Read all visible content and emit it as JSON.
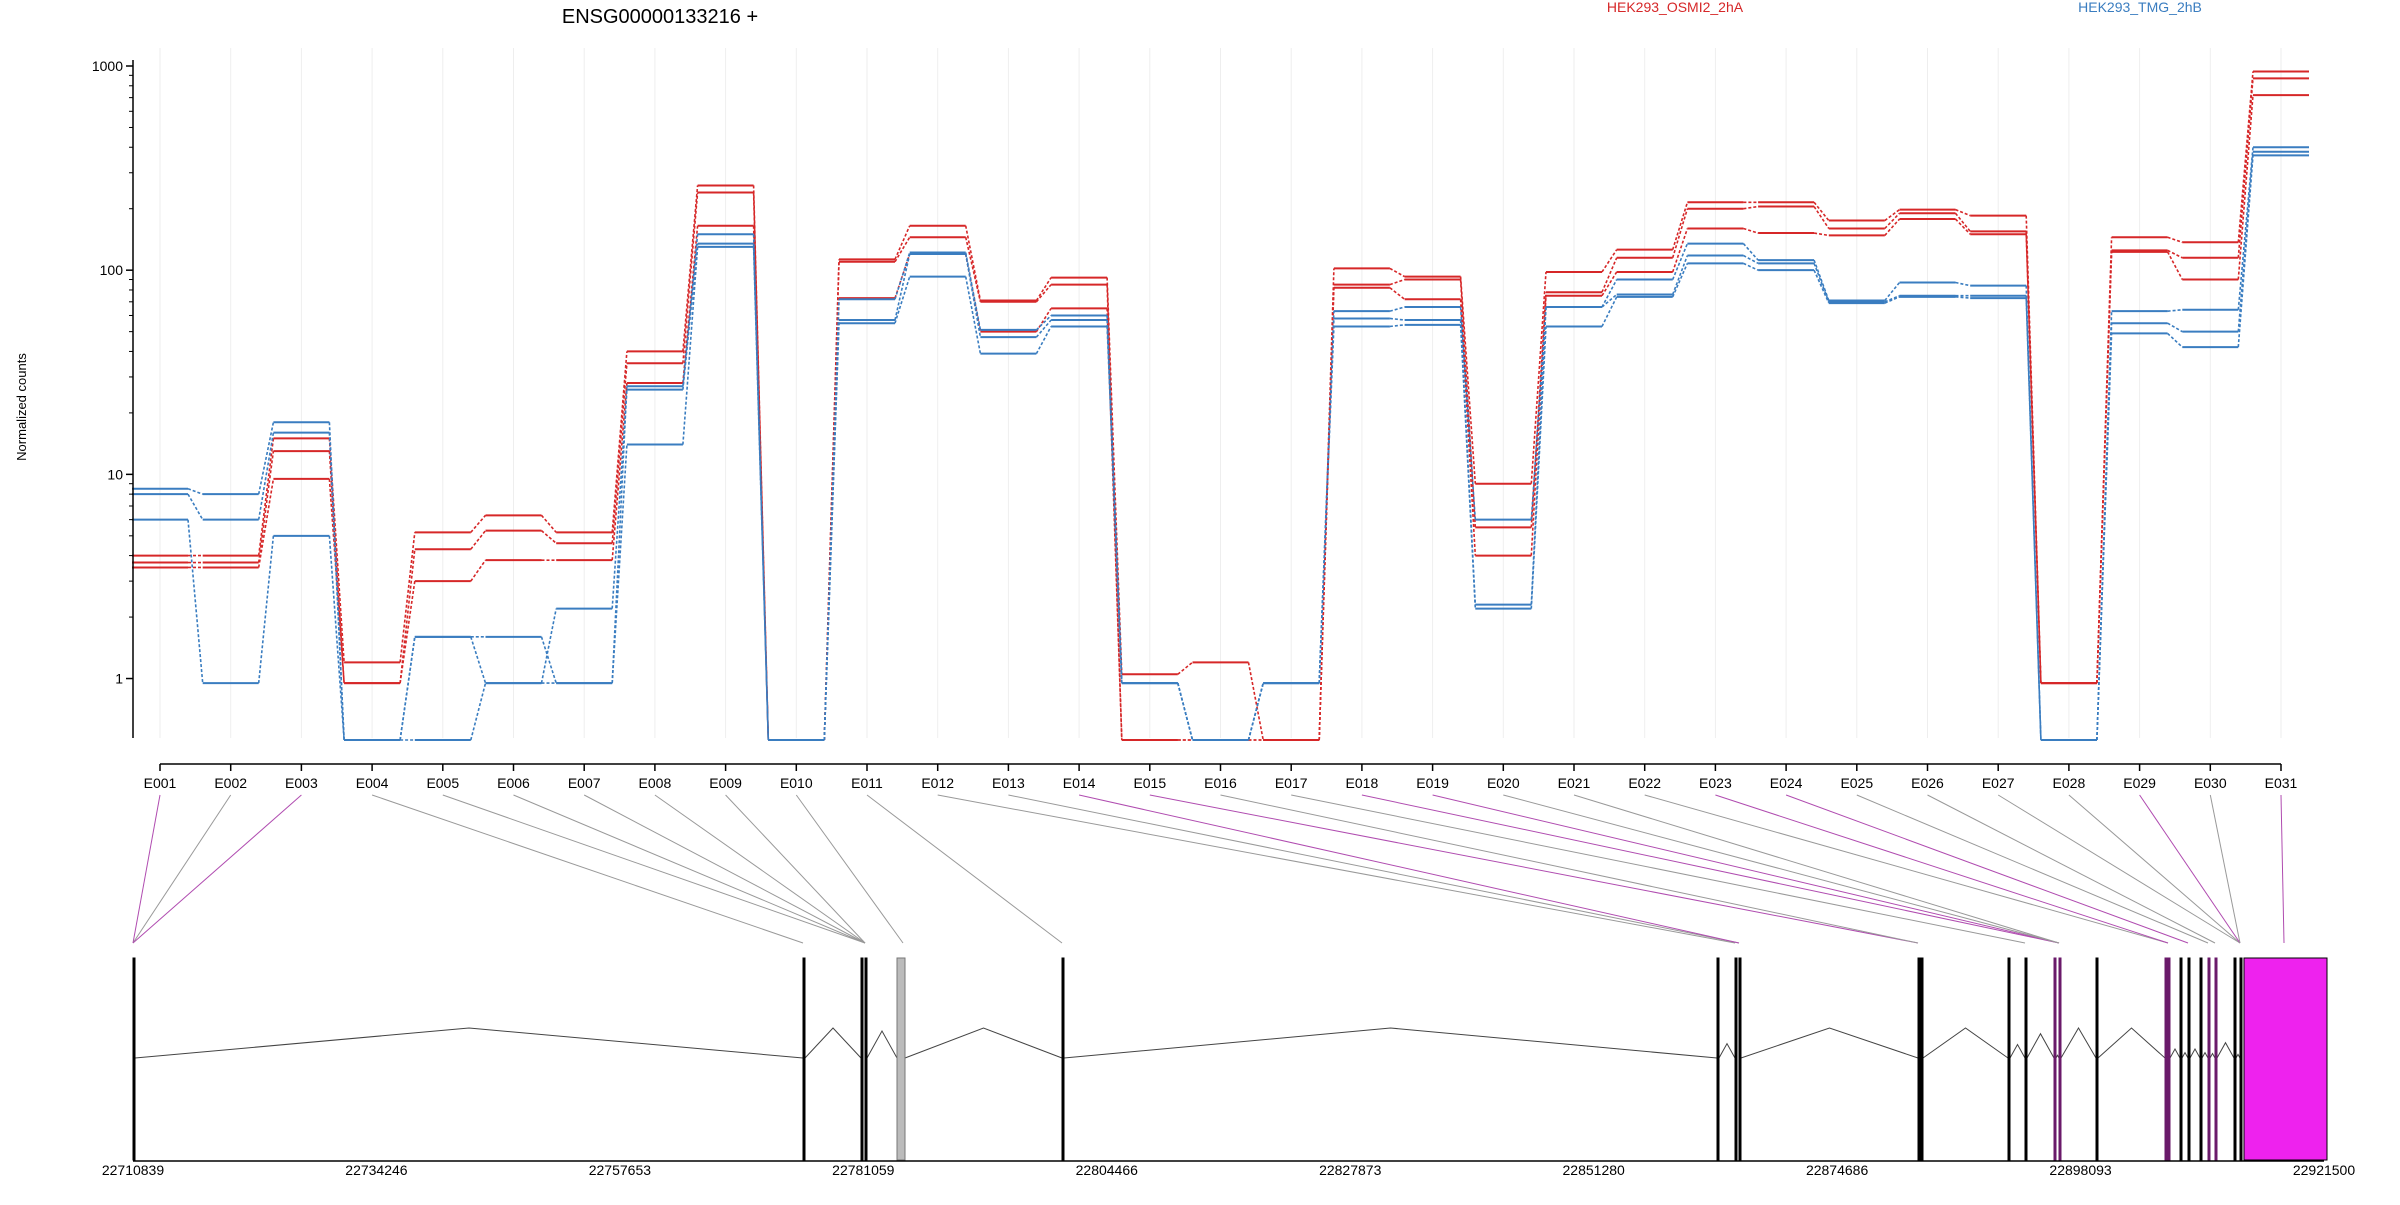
{
  "chart_data": {
    "type": "line",
    "title": "ENSG00000133216 +",
    "ylabel": "Normalized counts",
    "yscale": "log",
    "ylim": [
      0.5,
      1000
    ],
    "yticks": [
      1,
      10,
      100,
      1000
    ],
    "yticklabels": [
      "1",
      "10",
      "100",
      "1000"
    ],
    "grid": true,
    "legend": "top",
    "colors": {
      "red": "#d62728",
      "blue": "#3a7dc0",
      "axis": "#000000",
      "connector_exon": "#999999",
      "connector_highlight": "#b04cb0",
      "exon_highlight": "#ee22ee",
      "exon_gray": "#bbbbbb"
    },
    "categories": [
      "E001",
      "E002",
      "E003",
      "E004",
      "E005",
      "E006",
      "E007",
      "E008",
      "E009",
      "E010",
      "E011",
      "E012",
      "E013",
      "E014",
      "E015",
      "E016",
      "E017",
      "E018",
      "E019",
      "E020",
      "E021",
      "E022",
      "E023",
      "E024",
      "E025",
      "E026",
      "E027",
      "E028",
      "E029",
      "E030",
      "E031"
    ],
    "groups": [
      {
        "name": "HEK293_OSMI2_2hA",
        "color": "#d62728"
      },
      {
        "name": "HEK293_TMG_2hB",
        "color": "#3a7dc0"
      }
    ],
    "series": [
      {
        "group": 0,
        "values": [
          4.0,
          4.0,
          15,
          1.2,
          5.2,
          6.3,
          5.2,
          40,
          260,
          0.5,
          113,
          165,
          71,
          92,
          1.05,
          1.2,
          0.5,
          102,
          93,
          9,
          98,
          126,
          215,
          215,
          175,
          198,
          185,
          0.95,
          145,
          137,
          940
        ]
      },
      {
        "group": 0,
        "values": [
          3.7,
          3.7,
          13,
          0.95,
          4.3,
          5.3,
          4.6,
          35,
          240,
          0.5,
          110,
          145,
          70,
          85,
          0.5,
          0.5,
          0.5,
          85,
          90,
          5.5,
          78,
          115,
          200,
          205,
          160,
          190,
          155,
          0.95,
          125,
          115,
          870
        ]
      },
      {
        "group": 0,
        "values": [
          3.5,
          3.5,
          9.5,
          0.95,
          3.0,
          3.8,
          3.8,
          28,
          165,
          0.5,
          73,
          120,
          50,
          65,
          0.5,
          0.5,
          0.5,
          82,
          72,
          4.0,
          75,
          98,
          160,
          152,
          148,
          178,
          150,
          0.95,
          123,
          90,
          720
        ]
      },
      {
        "group": 1,
        "values": [
          8.5,
          8.0,
          18,
          0.5,
          1.6,
          1.6,
          0.95,
          27,
          150,
          0.5,
          72,
          122,
          51,
          60,
          0.95,
          0.5,
          0.95,
          63,
          66,
          6.0,
          66,
          90,
          135,
          112,
          71,
          87,
          84,
          0.5,
          63,
          64,
          400
        ]
      },
      {
        "group": 1,
        "values": [
          8.0,
          6.0,
          16,
          0.5,
          1.6,
          0.95,
          2.2,
          26,
          135,
          0.5,
          57,
          120,
          47,
          57,
          0.95,
          0.5,
          0.95,
          58,
          57,
          2.3,
          66,
          76,
          118,
          108,
          70,
          75,
          75,
          0.5,
          55,
          50,
          380
        ]
      },
      {
        "group": 1,
        "values": [
          6.0,
          0.95,
          5.0,
          0.5,
          0.5,
          0.95,
          0.95,
          14,
          130,
          0.5,
          55,
          93,
          39,
          53,
          0.95,
          0.5,
          0.95,
          53,
          54,
          2.2,
          53,
          74,
          108,
          100,
          69,
          74,
          73,
          0.5,
          49,
          42,
          365
        ]
      }
    ],
    "gene_model": {
      "xticklabels": [
        "22710839",
        "22734246",
        "22757653",
        "22781059",
        "22804466",
        "22827873",
        "22851280",
        "22874686",
        "22898093",
        "22921500"
      ]
    }
  }
}
